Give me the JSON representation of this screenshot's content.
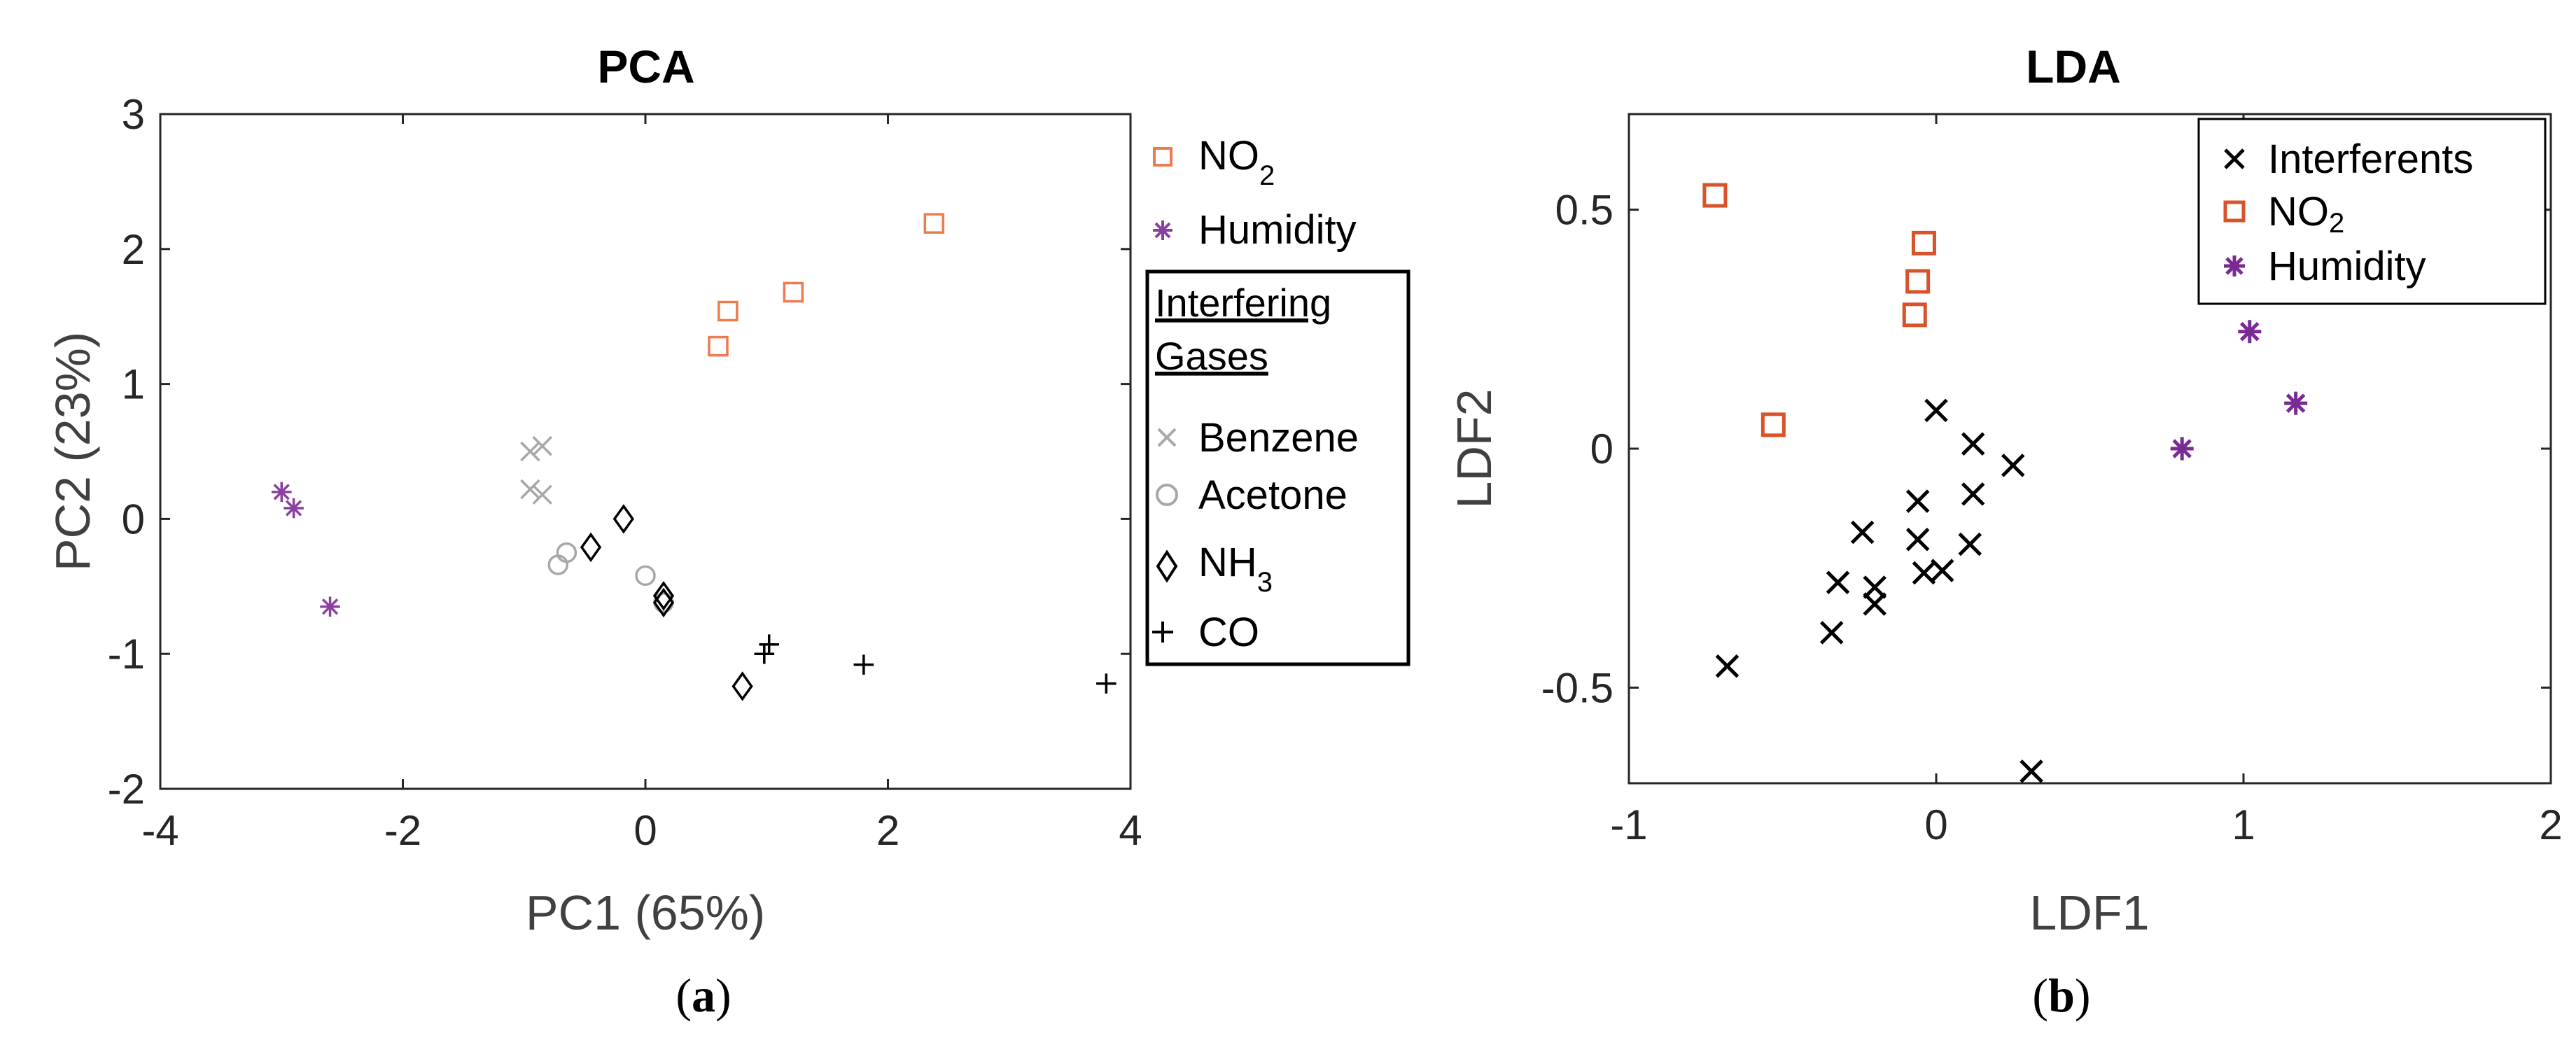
{
  "chart_data": [
    {
      "type": "scatter",
      "title": "PCA",
      "xlabel": "PC1 (65%)",
      "ylabel": "PC2 (23%)",
      "xlim": [
        -4,
        4
      ],
      "ylim": [
        -2,
        3
      ],
      "xticks": [
        "-4",
        "-2",
        "0",
        "2",
        "4"
      ],
      "yticks": [
        "-2",
        "-1",
        "0",
        "1",
        "2",
        "3"
      ],
      "xtick_values": [
        -4,
        -2,
        0,
        2,
        4
      ],
      "ytick_values": [
        -2,
        -1,
        0,
        1,
        2,
        3
      ],
      "panel_label": "a",
      "legend_group_title": [
        "Interfering",
        "Gases"
      ],
      "series": [
        {
          "name": "NO",
          "name_sub": "2",
          "marker": "square",
          "color": "#f07a50",
          "points": [
            [
              0.6,
              1.28
            ],
            [
              0.68,
              1.54
            ],
            [
              1.22,
              1.68
            ],
            [
              2.38,
              2.19
            ]
          ]
        },
        {
          "name": "Humidity",
          "marker": "asterisk",
          "color": "#8b3fa0",
          "points": [
            [
              -3.0,
              0.2
            ],
            [
              -2.9,
              0.08
            ],
            [
              -2.6,
              -0.65
            ]
          ]
        },
        {
          "name": "Benzene",
          "marker": "x",
          "color": "#a8a8a8",
          "points": [
            [
              -0.95,
              0.5
            ],
            [
              -0.85,
              0.54
            ],
            [
              -0.95,
              0.22
            ],
            [
              -0.85,
              0.18
            ]
          ]
        },
        {
          "name": "Acetone",
          "marker": "circle",
          "color": "#a8a8a8",
          "points": [
            [
              -0.65,
              -0.25
            ],
            [
              -0.72,
              -0.34
            ],
            [
              0.0,
              -0.42
            ],
            [
              0.15,
              -0.62
            ]
          ]
        },
        {
          "name": "NH",
          "name_sub": "3",
          "marker": "diamond",
          "color": "#000000",
          "points": [
            [
              -0.45,
              -0.21
            ],
            [
              -0.18,
              0.0
            ],
            [
              0.15,
              -0.57
            ],
            [
              0.15,
              -0.62
            ],
            [
              0.8,
              -1.24
            ]
          ]
        },
        {
          "name": "CO",
          "marker": "plus",
          "color": "#000000",
          "points": [
            [
              1.02,
              -0.93
            ],
            [
              0.98,
              -1.0
            ],
            [
              1.8,
              -1.08
            ],
            [
              3.8,
              -1.22
            ]
          ]
        }
      ]
    },
    {
      "type": "scatter",
      "title": "LDA",
      "xlabel": "LDF1",
      "ylabel": "LDF2",
      "xlim": [
        -1,
        2
      ],
      "ylim": [
        -0.7,
        0.7
      ],
      "xticks": [
        "-1",
        "0",
        "1",
        "2"
      ],
      "yticks": [
        "-0.5",
        "0",
        "0.5"
      ],
      "xtick_values": [
        -1,
        0,
        1,
        2
      ],
      "ytick_values": [
        -0.5,
        0,
        0.5
      ],
      "panel_label": "b",
      "series": [
        {
          "name": "Interferents",
          "marker": "x",
          "color": "#000000",
          "points": [
            [
              0.0,
              0.08
            ],
            [
              0.12,
              0.01
            ],
            [
              0.25,
              -0.035
            ],
            [
              -0.06,
              -0.11
            ],
            [
              0.12,
              -0.095
            ],
            [
              -0.24,
              -0.175
            ],
            [
              -0.06,
              -0.19
            ],
            [
              0.11,
              -0.2
            ],
            [
              -0.32,
              -0.28
            ],
            [
              -0.2,
              -0.29
            ],
            [
              -0.2,
              -0.325
            ],
            [
              -0.04,
              -0.26
            ],
            [
              0.02,
              -0.255
            ],
            [
              -0.34,
              -0.385
            ],
            [
              -0.68,
              -0.455
            ],
            [
              0.31,
              -0.675
            ]
          ]
        },
        {
          "name": "NO",
          "name_sub": "2",
          "marker": "square",
          "color": "#d9532a",
          "points": [
            [
              -0.72,
              0.53
            ],
            [
              -0.53,
              0.05
            ],
            [
              -0.04,
              0.43
            ],
            [
              -0.06,
              0.35
            ],
            [
              -0.07,
              0.28
            ]
          ]
        },
        {
          "name": "Humidity",
          "marker": "asterisk",
          "color": "#7a2a93",
          "points": [
            [
              0.8,
              0.0
            ],
            [
              1.02,
              0.245
            ],
            [
              1.17,
              0.095
            ]
          ]
        }
      ]
    }
  ]
}
